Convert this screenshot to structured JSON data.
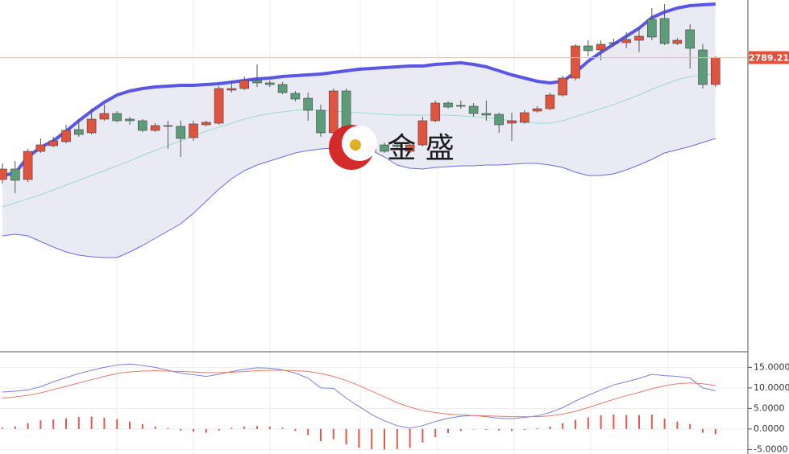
{
  "chart_data": [
    {
      "type": "candlestick",
      "ylim": [
        2607.5,
        2825
      ],
      "up_color": "#e0533d",
      "down_color": "#5c9c78",
      "open": [
        2713.5,
        2720,
        2713.5,
        2731,
        2734.5,
        2737,
        2744.5,
        2742.5,
        2751,
        2754.5,
        2751,
        2750,
        2744,
        2747,
        2746.5,
        2739.5,
        2747.5,
        2748.5,
        2769,
        2770,
        2775,
        2773.5,
        2772.5,
        2767,
        2764,
        2756.5,
        2742.5,
        2768.5,
        2731,
        2731,
        2735,
        2735,
        2731,
        2735,
        2750,
        2761,
        2759,
        2759,
        2754.5,
        2754,
        2748.5,
        2749,
        2756,
        2757.5,
        2766,
        2776.5,
        2796.5,
        2794,
        2798,
        2798.5,
        2800,
        2813,
        2813.5,
        2798,
        2806.5,
        2794,
        2772.5
      ],
      "high": [
        2723.5,
        2725,
        2732.5,
        2739,
        2740,
        2747.5,
        2751,
        2757.5,
        2760,
        2756,
        2752.5,
        2751,
        2748.5,
        2750,
        2750,
        2750,
        2750,
        2771.5,
        2775,
        2777.5,
        2785,
        2775,
        2774,
        2768.5,
        2767.5,
        2760,
        2770,
        2770,
        2737.5,
        2736,
        2736.5,
        2736.5,
        2736.5,
        2752.5,
        2762.5,
        2762,
        2762.5,
        2761,
        2762.5,
        2755,
        2755,
        2756.5,
        2759,
        2767.5,
        2778,
        2797.5,
        2800,
        2800,
        2801,
        2805,
        2807.5,
        2820,
        2822.5,
        2801.5,
        2810,
        2797.5,
        2790
      ],
      "low": [
        2711,
        2705,
        2712,
        2730,
        2733.5,
        2736,
        2740,
        2741.5,
        2750,
        2749,
        2747.5,
        2743,
        2743,
        2732.5,
        2727.5,
        2737.5,
        2746.5,
        2747.5,
        2767.5,
        2769,
        2771,
        2771,
        2766.5,
        2762,
        2750,
        2740,
        2741,
        2730,
        2729,
        2730,
        2730,
        2732.5,
        2730,
        2734,
        2749,
        2757.5,
        2757.5,
        2752.5,
        2750,
        2742.5,
        2737.5,
        2748,
        2755,
        2756.5,
        2765,
        2775,
        2790,
        2787.5,
        2796,
        2795,
        2792.5,
        2800,
        2797,
        2797,
        2782.5,
        2770,
        2771
      ],
      "close": [
        2720,
        2713,
        2731,
        2735,
        2737.5,
        2744,
        2741.5,
        2751,
        2754.5,
        2750,
        2750,
        2744,
        2747,
        2746.5,
        2739,
        2748,
        2749,
        2770,
        2770,
        2775,
        2773.5,
        2772.5,
        2767.5,
        2763.5,
        2756.5,
        2742.5,
        2768.5,
        2732.5,
        2734,
        2734,
        2731,
        2734,
        2735,
        2750,
        2761,
        2758.5,
        2759.5,
        2754.5,
        2753.5,
        2747.5,
        2750,
        2755,
        2757.5,
        2766,
        2776.5,
        2796.5,
        2793.5,
        2797.5,
        2798.5,
        2800.5,
        2802.5,
        2802,
        2798,
        2800,
        2795,
        2772.5,
        2789.21
      ],
      "bands": [
        {
          "color": "#5a57e6",
          "values": [
            2716,
            2717.5,
            2727.5,
            2733.5,
            2737.5,
            2743.5,
            2750,
            2756,
            2761.5,
            2766,
            2768.5,
            2770,
            2771,
            2771.5,
            2772,
            2772,
            2772.5,
            2773,
            2774,
            2775,
            2776,
            2776.5,
            2777.5,
            2778,
            2778.5,
            2779,
            2780,
            2781,
            2782,
            2782.5,
            2783,
            2783.5,
            2784,
            2784,
            2785,
            2785.5,
            2786,
            2785,
            2783.5,
            2781,
            2778.5,
            2776.5,
            2774.5,
            2773.5,
            2774.5,
            2780,
            2787,
            2792.5,
            2797.5,
            2802.5,
            2807.5,
            2814,
            2817.5,
            2820,
            2821.5,
            2822,
            2822.5
          ]
        },
        {
          "color": "#9adcc8",
          "values": [
            2696.5,
            2699,
            2701.5,
            2704,
            2707,
            2710,
            2713,
            2716,
            2719,
            2722,
            2725,
            2728.5,
            2731.5,
            2734.5,
            2737.5,
            2740.5,
            2743.5,
            2746,
            2748.5,
            2751,
            2753,
            2754.5,
            2755.5,
            2756.5,
            2757,
            2756.5,
            2756,
            2755.5,
            2755,
            2754.5,
            2754,
            2753.5,
            2753.5,
            2753.5,
            2753.5,
            2753.5,
            2753,
            2752.5,
            2752,
            2751,
            2750,
            2749,
            2748.5,
            2748.5,
            2750,
            2752.5,
            2755,
            2757.5,
            2760,
            2763,
            2766,
            2769.5,
            2772.5,
            2775.5,
            2777.5,
            2778.5,
            2779
          ]
        },
        {
          "color": "#6b6be0",
          "values": [
            2678.5,
            2679.5,
            2678.5,
            2675,
            2671.5,
            2668.5,
            2666.5,
            2665.5,
            2665,
            2665,
            2668.5,
            2672.5,
            2677,
            2681.5,
            2686,
            2692.5,
            2700,
            2707.5,
            2714,
            2719,
            2722.5,
            2725,
            2727.5,
            2730,
            2731.5,
            2732.5,
            2733,
            2733.5,
            2733,
            2731.5,
            2727.5,
            2722.5,
            2720.5,
            2720,
            2721,
            2721.5,
            2722,
            2722,
            2722.5,
            2722.5,
            2723,
            2723.5,
            2723.5,
            2722.5,
            2721,
            2718,
            2716,
            2716,
            2717,
            2719.5,
            2722.5,
            2726,
            2730,
            2732,
            2734,
            2736.5,
            2739
          ]
        }
      ],
      "band_fill": "#e6e6f3",
      "last_line_color": "#f2b8a0",
      "last_label_color": "#e0533d"
    },
    {
      "type": "macd",
      "ylim": [
        -6.1,
        18.8
      ],
      "grid": true,
      "yticks": [
        {
          "value": 15,
          "label": "15.0000"
        },
        {
          "value": 10,
          "label": "10.0000"
        },
        {
          "value": 5,
          "label": "5.0000"
        },
        {
          "value": 0,
          "label": "0.0000"
        },
        {
          "value": -5,
          "label": "-5.0000"
        }
      ],
      "series": [
        {
          "color": "#7b7ee0",
          "values": [
            9.0,
            9.2,
            9.5,
            10.3,
            11.5,
            12.5,
            13.5,
            14.3,
            15.0,
            15.6,
            15.8,
            15.5,
            15.0,
            14.3,
            13.6,
            13.2,
            12.8,
            13.3,
            14.0,
            14.5,
            14.9,
            14.8,
            14.4,
            13.6,
            12.4,
            10.0,
            9.9,
            7.5,
            5.5,
            3.5,
            2.0,
            0.8,
            0.2,
            0.8,
            1.8,
            2.6,
            3.1,
            3.3,
            3.0,
            2.6,
            2.5,
            2.8,
            3.2,
            4.0,
            5.2,
            6.8,
            8.2,
            9.5,
            10.7,
            11.5,
            12.3,
            13.3,
            13.0,
            12.8,
            12.4,
            10.0,
            9.3
          ]
        },
        {
          "color": "#ea7a6a",
          "values": [
            7.5,
            7.8,
            8.2,
            8.8,
            9.6,
            10.4,
            11.2,
            12.0,
            12.8,
            13.5,
            13.9,
            14.1,
            14.2,
            14.1,
            14.0,
            13.9,
            13.7,
            13.7,
            13.8,
            14.0,
            14.2,
            14.3,
            14.3,
            14.2,
            14.0,
            13.5,
            12.8,
            11.8,
            10.6,
            9.2,
            7.8,
            6.4,
            5.3,
            4.5,
            4.0,
            3.6,
            3.4,
            3.3,
            3.2,
            3.1,
            3.0,
            3.0,
            3.0,
            3.2,
            3.6,
            4.3,
            5.2,
            6.2,
            7.2,
            8.1,
            8.9,
            9.8,
            10.5,
            11.0,
            11.2,
            11.0,
            10.6
          ]
        }
      ],
      "histogram": {
        "color": "#e8584a",
        "values": [
          0.3,
          0.6,
          1.4,
          2.1,
          2.3,
          2.6,
          2.9,
          3.0,
          2.7,
          2.4,
          1.8,
          1.2,
          0.6,
          0.2,
          -0.4,
          -0.7,
          -0.9,
          -0.4,
          0.3,
          0.6,
          0.7,
          0.6,
          0.3,
          -0.5,
          -1.5,
          -3.0,
          -2.5,
          -3.8,
          -4.6,
          -4.9,
          -5.0,
          -4.9,
          -4.6,
          -3.3,
          -2.0,
          -1.0,
          -0.5,
          0.0,
          -0.2,
          -0.4,
          -0.5,
          -0.2,
          0.2,
          0.6,
          1.4,
          2.2,
          2.8,
          3.3,
          3.5,
          3.4,
          3.4,
          3.5,
          2.5,
          1.8,
          1.2,
          -0.9,
          -1.3
        ]
      }
    }
  ],
  "watermark": "金 盛"
}
